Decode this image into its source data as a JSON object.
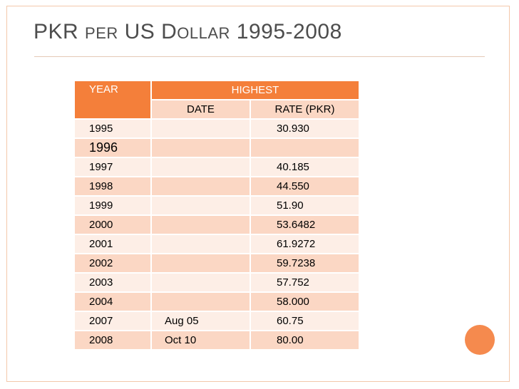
{
  "slide": {
    "title_parts": [
      {
        "text": "PKR ",
        "small": false
      },
      {
        "text": "PER",
        "small": true
      },
      {
        "text": " US D",
        "small": false
      },
      {
        "text": "OLLAR",
        "small": true
      },
      {
        "text": " 1995-2008",
        "small": false
      }
    ]
  },
  "table": {
    "headers": {
      "year": "YEAR",
      "highest": "HIGHEST",
      "date": "DATE",
      "rate": "RATE  (PKR)"
    },
    "rows": [
      {
        "year": "1995",
        "date": "",
        "rate": "30.930"
      },
      {
        "year": "1996",
        "date": "",
        "rate": ""
      },
      {
        "year": "1997",
        "date": "",
        "rate": "40.185"
      },
      {
        "year": "1998",
        "date": "",
        "rate": "44.550"
      },
      {
        "year": "1999",
        "date": "",
        "rate": "51.90"
      },
      {
        "year": "2000",
        "date": "",
        "rate": "53.6482"
      },
      {
        "year": "2001",
        "date": "",
        "rate": "61.9272"
      },
      {
        "year": "2002",
        "date": "",
        "rate": "59.7238"
      },
      {
        "year": "2003",
        "date": "",
        "rate": "57.752"
      },
      {
        "year": "2004",
        "date": "",
        "rate": "58.000"
      },
      {
        "year": "2007",
        "date": "Aug 05",
        "rate": "60.75"
      },
      {
        "year": "2008",
        "date": "Oct 10",
        "rate": "80.00"
      }
    ]
  },
  "colors": {
    "accent": "#f47f3a",
    "row_dark": "#fbd7c4",
    "row_light": "#fdeee6",
    "title": "#4d4d4d"
  }
}
